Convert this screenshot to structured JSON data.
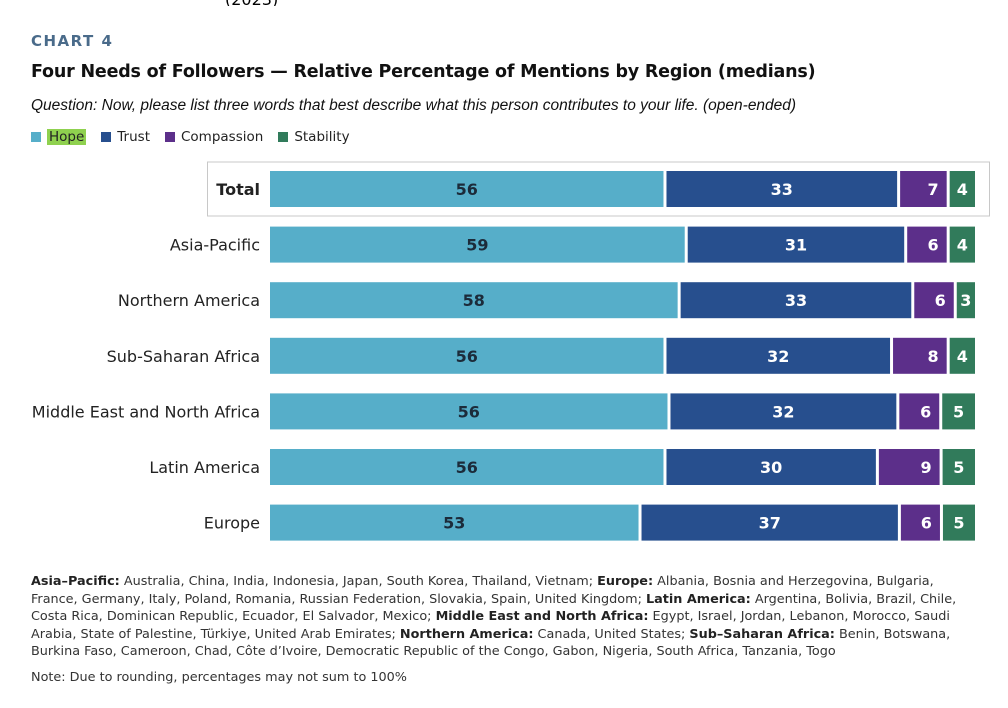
{
  "chart_label": "CHART 4",
  "chart_data": {
    "type": "bar",
    "orientation": "horizontal",
    "stacked": true,
    "title": "Four Needs of Followers — Relative Percentage of Mentions by Region (medians)",
    "subtitle": "Question: Now, please list three words that best describe what this person contributes to your life. (open-ended)",
    "categories": [
      "Total",
      "Asia-Pacific",
      "Northern America",
      "Sub-Saharan Africa",
      "Middle East and North Africa",
      "Latin America",
      "Europe"
    ],
    "series": [
      {
        "name": "Hope",
        "color": "#56aec9",
        "values": [
          56,
          59,
          58,
          56,
          56,
          56,
          53
        ]
      },
      {
        "name": "Trust",
        "color": "#274f8e",
        "values": [
          33,
          31,
          33,
          32,
          32,
          30,
          37
        ]
      },
      {
        "name": "Compassion",
        "color": "#5c2f8a",
        "values": [
          7,
          6,
          6,
          8,
          6,
          9,
          6
        ]
      },
      {
        "name": "Stability",
        "color": "#317b5b",
        "values": [
          4,
          4,
          3,
          4,
          5,
          5,
          5
        ]
      }
    ],
    "highlighted_category": "Total",
    "legend_position": "top-left",
    "grid": false
  },
  "legend_highlight": "Hope",
  "footnote": {
    "countries": [
      {
        "region": "Asia–Pacific:",
        "list": " Australia, China, India, Indonesia, Japan, South Korea, Thailand, Vietnam; "
      },
      {
        "region": "Europe:",
        "list": " Albania, Bosnia and Herzegovina, Bulgaria, France, Germany, Italy, Poland, Romania, Russian Federation, Slovakia, Spain, United Kingdom; "
      },
      {
        "region": "Latin America:",
        "list": " Argentina, Bolivia, Brazil, Chile, Costa Rica, Dominican Republic, Ecuador, El Salvador, Mexico; "
      },
      {
        "region": "Middle East and North Africa:",
        "list": " Egypt, Israel, Jordan, Lebanon, Morocco, Saudi Arabia, State of Palestine, Türkiye, United Arab Emirates; "
      },
      {
        "region": "Northern America:",
        "list": " Canada, United States; "
      },
      {
        "region": "Sub–Saharan Africa:",
        "list": " Benin, Botswana, Burkina Faso, Cameroon, Chad, Côte d’Ivoire, Democratic Republic of the Congo, Gabon, Nigeria, South Africa, Tanzania, Togo"
      }
    ],
    "note": "Note: Due to rounding, percentages may not sum to 100%"
  }
}
